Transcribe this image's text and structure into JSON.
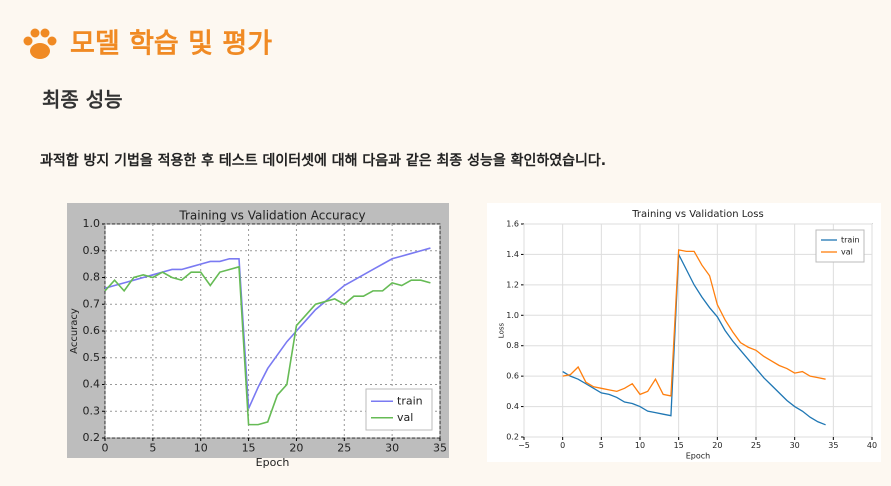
{
  "header": {
    "title": "모델 학습 및 평가",
    "subtitle": "최종 성능",
    "text": "과적합 방지 기법을 적용한 후 테스트 데이터셋에 대해 다음과 같은 최종 성능을 확인하였습니다."
  },
  "chart_data": [
    {
      "type": "line",
      "title": "Training vs Validation Accuracy",
      "x_label": "Epoch",
      "y_label": "Accuracy",
      "x": [
        0,
        1,
        2,
        3,
        4,
        5,
        6,
        7,
        8,
        9,
        10,
        11,
        12,
        13,
        14,
        15,
        16,
        17,
        18,
        19,
        20,
        21,
        22,
        23,
        24,
        25,
        26,
        27,
        28,
        29,
        30,
        31,
        32,
        33,
        34
      ],
      "series": [
        {
          "name": "train",
          "color": "#7a7af2",
          "values": [
            0.76,
            0.77,
            0.78,
            0.79,
            0.8,
            0.81,
            0.82,
            0.83,
            0.83,
            0.84,
            0.85,
            0.86,
            0.86,
            0.87,
            0.87,
            0.31,
            0.39,
            0.46,
            0.51,
            0.56,
            0.6,
            0.64,
            0.68,
            0.71,
            0.74,
            0.77,
            0.79,
            0.81,
            0.83,
            0.85,
            0.87,
            0.88,
            0.89,
            0.9,
            0.91
          ]
        },
        {
          "name": "val",
          "color": "#66bb55",
          "values": [
            0.75,
            0.79,
            0.75,
            0.8,
            0.81,
            0.8,
            0.82,
            0.8,
            0.79,
            0.82,
            0.82,
            0.77,
            0.82,
            0.83,
            0.84,
            0.25,
            0.25,
            0.26,
            0.36,
            0.4,
            0.62,
            0.66,
            0.7,
            0.71,
            0.72,
            0.7,
            0.73,
            0.73,
            0.75,
            0.75,
            0.78,
            0.77,
            0.79,
            0.79,
            0.78
          ]
        }
      ],
      "xlim": [
        0,
        35
      ],
      "xticks": [
        0,
        5,
        10,
        15,
        20,
        25,
        30,
        35
      ],
      "ylim": [
        0.2,
        1.0
      ],
      "yticks": [
        0.2,
        0.3,
        0.4,
        0.5,
        0.6,
        0.7,
        0.8,
        0.9,
        {
          "value": 1,
          "label": "1.0"
        }
      ],
      "grid": true,
      "legend": "lower right"
    },
    {
      "type": "line",
      "title": "Training vs Validation Loss",
      "x_label": "Epoch",
      "y_label": "Loss",
      "x": [
        0,
        1,
        2,
        3,
        4,
        5,
        6,
        7,
        8,
        9,
        10,
        11,
        12,
        13,
        14,
        15,
        16,
        17,
        18,
        19,
        20,
        21,
        22,
        23,
        24,
        25,
        26,
        27,
        28,
        29,
        30,
        31,
        32,
        33,
        34
      ],
      "series": [
        {
          "name": "train",
          "color": "#1f77b4",
          "values": [
            0.63,
            0.6,
            0.58,
            0.55,
            0.52,
            0.49,
            0.48,
            0.46,
            0.43,
            0.42,
            0.4,
            0.37,
            0.36,
            0.35,
            0.34,
            1.4,
            1.3,
            1.2,
            1.12,
            1.05,
            0.99,
            0.9,
            0.83,
            0.77,
            0.71,
            0.65,
            0.59,
            0.54,
            0.49,
            0.44,
            0.4,
            0.37,
            0.33,
            0.3,
            0.28
          ]
        },
        {
          "name": "val",
          "color": "#ff7f0e",
          "values": [
            0.6,
            0.61,
            0.66,
            0.56,
            0.53,
            0.52,
            0.51,
            0.5,
            0.52,
            0.55,
            0.48,
            0.5,
            0.58,
            0.48,
            0.47,
            1.43,
            1.42,
            1.42,
            1.33,
            1.26,
            1.07,
            0.97,
            0.89,
            0.82,
            0.79,
            0.77,
            0.73,
            0.7,
            0.67,
            0.65,
            0.62,
            0.63,
            0.6,
            0.59,
            0.58
          ]
        }
      ],
      "xlim": [
        -5,
        40
      ],
      "xticks": [
        {
          "value": -5,
          "label": "−5"
        },
        0,
        5,
        10,
        15,
        20,
        25,
        30,
        35,
        40
      ],
      "ylim": [
        0.2,
        1.6
      ],
      "yticks": [
        0.2,
        0.4,
        0.6,
        0.8,
        {
          "value": 1,
          "label": "1.0"
        },
        1.2,
        1.4,
        1.6
      ],
      "grid": true,
      "legend": "upper right"
    }
  ]
}
